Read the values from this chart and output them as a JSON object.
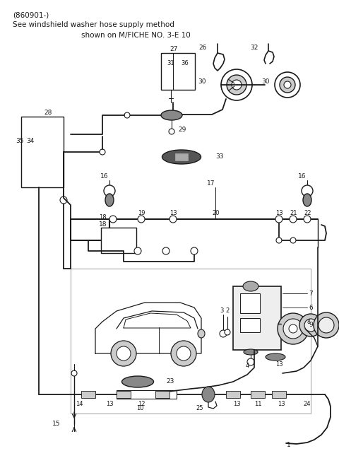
{
  "title_line1": "(860901-)",
  "title_line2": "See windshield washer hose supply method",
  "title_line3": "shown on M/FICHE NO. 3-E 10",
  "bg_color": "#ffffff",
  "line_color": "#1a1a1a",
  "fig_width": 4.8,
  "fig_height": 6.38,
  "dpi": 100
}
